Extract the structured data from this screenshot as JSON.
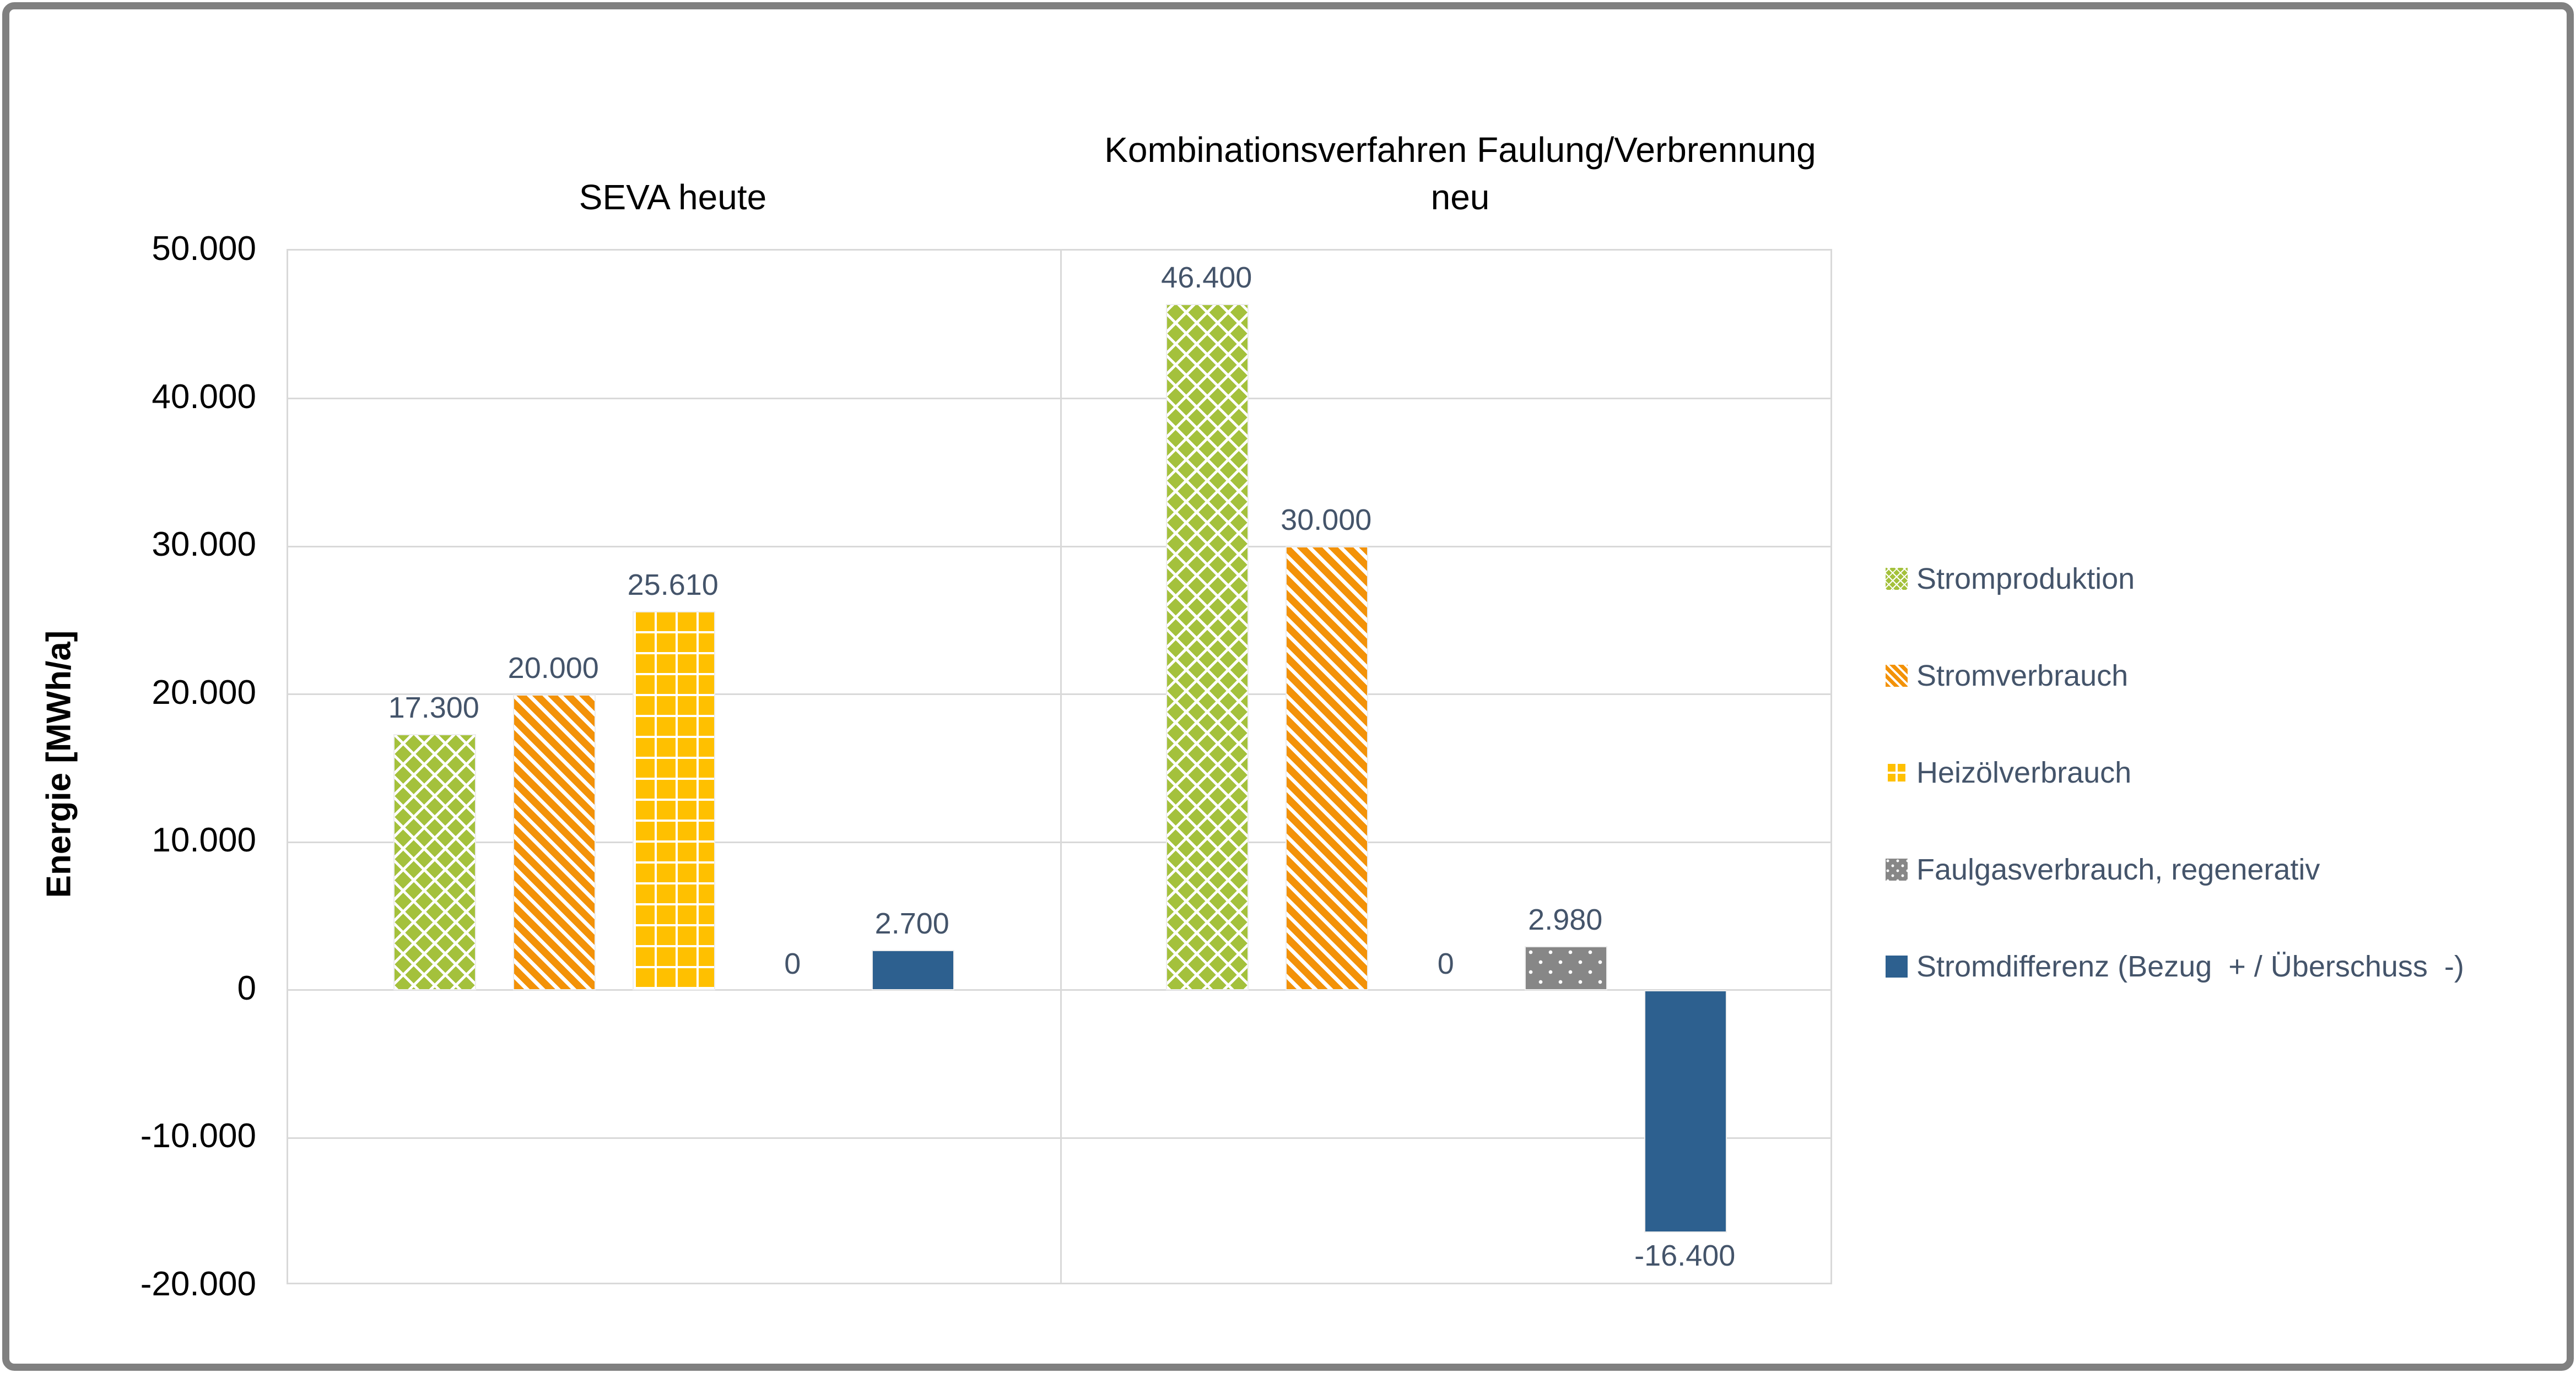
{
  "chart_data": {
    "type": "bar",
    "ylabel": "Energie [MWh/a]",
    "ylim": [
      -20000,
      50000
    ],
    "ytick_step": 10000,
    "ytick_labels": [
      "50.000",
      "40.000",
      "30.000",
      "20.000",
      "10.000",
      "0",
      "-10.000",
      "-20.000"
    ],
    "grid": true,
    "legend_position": "right",
    "panel_titles": {
      "left": "SEVA heute",
      "right_line1": "Kombinationsverfahren Faulung/Verbrennung",
      "right_line2": "neu"
    },
    "categories": [
      "SEVA heute",
      "Kombinationsverfahren Faulung/Verbrennung neu"
    ],
    "series": [
      {
        "name": "Stromproduktion",
        "pattern": "crosshatch-diamond",
        "color": "#A4C13C",
        "values": [
          17300,
          46400
        ],
        "labels": [
          "17.300",
          "46.400"
        ]
      },
      {
        "name": "Stromverbrauch",
        "pattern": "diagonal-stripes",
        "color": "#F39208",
        "values": [
          20000,
          30000
        ],
        "labels": [
          "20.000",
          "30.000"
        ]
      },
      {
        "name": "Heizölverbrauch",
        "pattern": "grid",
        "color": "#FFC000",
        "values": [
          25610,
          0
        ],
        "labels": [
          "25.610",
          "0"
        ]
      },
      {
        "name": "Faulgasverbrauch, regenerativ",
        "pattern": "dots",
        "color": "#878787",
        "values": [
          0,
          2980
        ],
        "labels": [
          "0",
          "2.980"
        ]
      },
      {
        "name": "Stromdifferenz (Bezug  + / Überschuss  -)",
        "pattern": "solid",
        "color": "#2D608F",
        "values": [
          2700,
          -16400
        ],
        "labels": [
          "2.700",
          "-16.400"
        ]
      }
    ],
    "colors": {
      "data_label": "#44546A",
      "legend_text": "#44546A",
      "axis_text": "#000000",
      "gridline": "#D9D9D9",
      "frame_border": "#808080"
    }
  }
}
